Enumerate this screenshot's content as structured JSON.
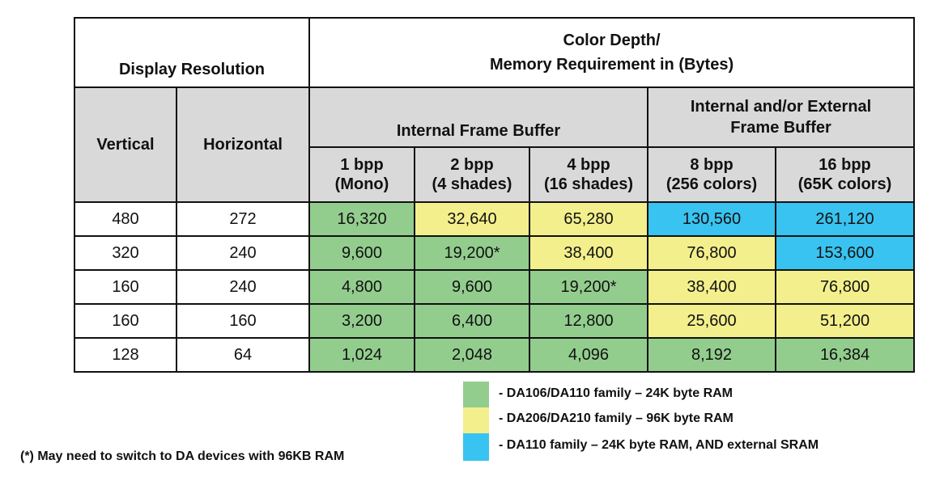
{
  "header": {
    "display_resolution": "Display Resolution",
    "color_depth_line1": "Color Depth/",
    "color_depth_line2": "Memory Requirement in (Bytes)",
    "internal_fb": "Internal Frame Buffer",
    "int_ext_fb_line1": "Internal and/or External",
    "int_ext_fb_line2": "Frame Buffer",
    "vertical": "Vertical",
    "horizontal": "Horizontal",
    "columns": [
      {
        "l1": "1 bpp",
        "l2": "(Mono)"
      },
      {
        "l1": "2 bpp",
        "l2": "(4 shades)"
      },
      {
        "l1": "4 bpp",
        "l2": "(16 shades)"
      },
      {
        "l1": "8 bpp",
        "l2": "(256 colors)"
      },
      {
        "l1": "16 bpp",
        "l2": "(65K colors)"
      }
    ]
  },
  "rows": [
    {
      "vertical": "480",
      "horizontal": "272",
      "values": [
        "16,320",
        "32,640",
        "65,280",
        "130,560",
        "261,120"
      ],
      "colors": [
        "green",
        "yellow",
        "yellow",
        "blue",
        "blue"
      ]
    },
    {
      "vertical": "320",
      "horizontal": "240",
      "values": [
        "9,600",
        "19,200*",
        "38,400",
        "76,800",
        "153,600"
      ],
      "colors": [
        "green",
        "green",
        "yellow",
        "yellow",
        "blue"
      ]
    },
    {
      "vertical": "160",
      "horizontal": "240",
      "values": [
        "4,800",
        "9,600",
        "19,200*",
        "38,400",
        "76,800"
      ],
      "colors": [
        "green",
        "green",
        "green",
        "yellow",
        "yellow"
      ]
    },
    {
      "vertical": "160",
      "horizontal": "160",
      "values": [
        "3,200",
        "6,400",
        "12,800",
        "25,600",
        "51,200"
      ],
      "colors": [
        "green",
        "green",
        "green",
        "yellow",
        "yellow"
      ]
    },
    {
      "vertical": "128",
      "horizontal": "64",
      "values": [
        "1,024",
        "2,048",
        "4,096",
        "8,192",
        "16,384"
      ],
      "colors": [
        "green",
        "green",
        "green",
        "green",
        "green"
      ]
    }
  ],
  "colors": {
    "green": "#93cd8e",
    "yellow": "#f3ef8c",
    "blue": "#39c3f0",
    "header_gray": "#d9d9d9"
  },
  "legend": [
    {
      "color": "green",
      "text": "- DA106/DA110 family – 24K byte RAM"
    },
    {
      "color": "yellow",
      "text": "- DA206/DA210 family – 96K byte RAM"
    },
    {
      "color": "blue",
      "text": "- DA110 family – 24K byte RAM, AND external SRAM"
    }
  ],
  "footnote": "(*) May need to switch to DA devices with 96KB RAM"
}
